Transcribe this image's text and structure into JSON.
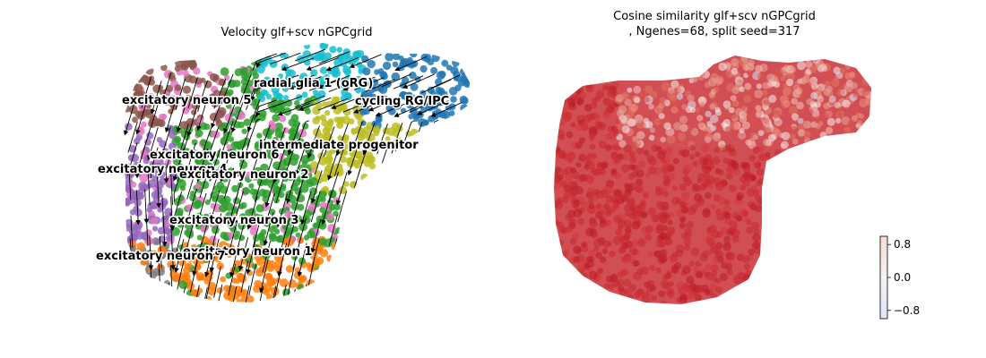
{
  "chart_data": [
    {
      "type": "scatter",
      "title": "Velocity glf+scv nGPCgrid",
      "xlabel": "",
      "ylabel": "",
      "embedding_overlay": "velocity streamlines with arrowheads",
      "clusters": [
        {
          "label": "radial glia 1 (oRG)",
          "color": "#17becf"
        },
        {
          "label": "cycling RG/IPC",
          "color": "#1f77b4"
        },
        {
          "label": "intermediate progenitor",
          "color": "#bcbd22"
        },
        {
          "label": "excitatory neuron 1",
          "color": "#ff7f0e"
        },
        {
          "label": "excitatory neuron 2",
          "color": "#2ca02c"
        },
        {
          "label": "excitatory neuron 3",
          "color": "#2ca02c"
        },
        {
          "label": "excitatory neuron 4",
          "color": "#9467bd"
        },
        {
          "label": "excitatory neuron 5",
          "color": "#8c564b"
        },
        {
          "label": "excitatory neuron 6",
          "color": "#e377c2"
        },
        {
          "label": "excitatory neuron 7",
          "color": "#7f7f7f"
        }
      ]
    },
    {
      "type": "scatter",
      "title_lines": [
        "Cosine similarity glf+scv nGPCgrid",
        ", Ngenes=68, split seed=317"
      ],
      "xlabel": "",
      "ylabel": "",
      "colormap": "coolwarm",
      "color_range": [
        -1.0,
        1.0
      ],
      "colorbar_ticks": [
        {
          "value": 0.8,
          "label": "0.8"
        },
        {
          "value": 0.0,
          "label": "0.0"
        },
        {
          "value": -0.8,
          "label": "−0.8"
        }
      ],
      "point_color": "#c8282e",
      "colorbar_location": "bottom-right"
    }
  ]
}
